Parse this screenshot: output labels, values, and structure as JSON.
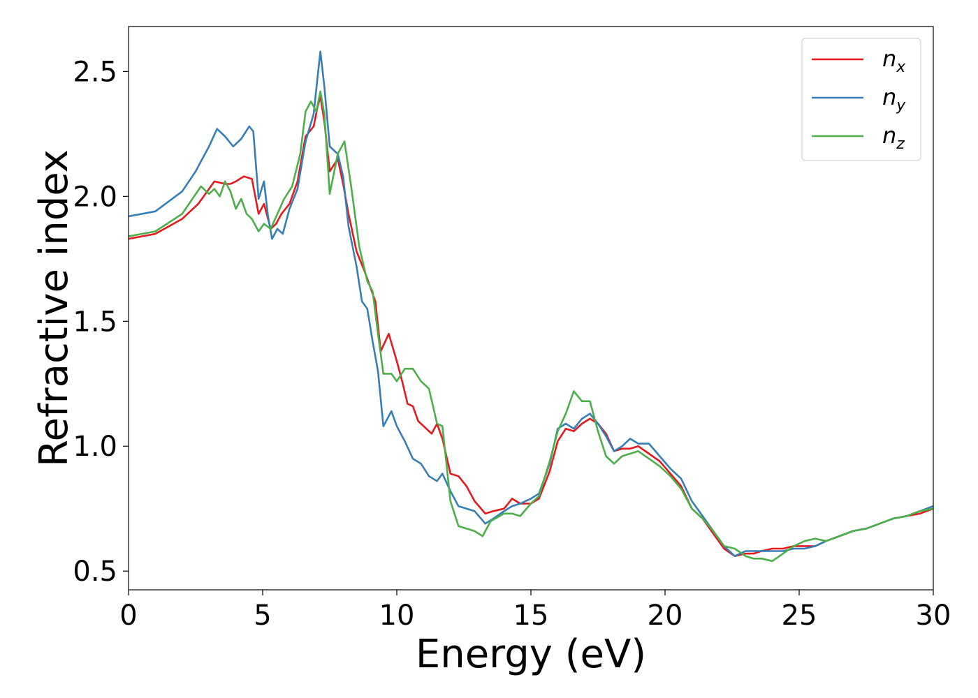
{
  "chart_data": {
    "type": "line",
    "xlabel": "Energy (eV)",
    "ylabel": "Refractive index",
    "xlim": [
      0,
      30
    ],
    "ylim": [
      0.425,
      2.68
    ],
    "xticks": [
      0,
      5,
      10,
      15,
      20,
      25,
      30
    ],
    "yticks": [
      0.5,
      1.0,
      1.5,
      2.0,
      2.5
    ],
    "xtick_labels": [
      "0",
      "5",
      "10",
      "15",
      "20",
      "25",
      "30"
    ],
    "ytick_labels": [
      "0.5",
      "1.0",
      "1.5",
      "2.0",
      "2.5"
    ],
    "grid": false,
    "legend_position": "top-right",
    "series": [
      {
        "name": "n",
        "subscript": "x",
        "color": "#e41a1c",
        "points": [
          [
            0,
            1.83
          ],
          [
            1,
            1.85
          ],
          [
            2,
            1.91
          ],
          [
            2.6,
            1.97
          ],
          [
            3.2,
            2.06
          ],
          [
            3.6,
            2.05
          ],
          [
            3.8,
            2.05
          ],
          [
            4,
            2.06
          ],
          [
            4.3,
            2.08
          ],
          [
            4.6,
            2.07
          ],
          [
            4.85,
            1.93
          ],
          [
            5.05,
            1.97
          ],
          [
            5.3,
            1.87
          ],
          [
            5.5,
            1.89
          ],
          [
            5.7,
            1.93
          ],
          [
            6,
            1.97
          ],
          [
            6.3,
            2.06
          ],
          [
            6.6,
            2.24
          ],
          [
            6.9,
            2.28
          ],
          [
            7.05,
            2.36
          ],
          [
            7.15,
            2.4
          ],
          [
            7.3,
            2.3
          ],
          [
            7.5,
            2.1
          ],
          [
            7.8,
            2.15
          ],
          [
            8,
            2.05
          ],
          [
            8.2,
            1.93
          ],
          [
            8.5,
            1.78
          ],
          [
            8.8,
            1.7
          ],
          [
            9,
            1.64
          ],
          [
            9.2,
            1.58
          ],
          [
            9.4,
            1.38
          ],
          [
            9.7,
            1.45
          ],
          [
            10,
            1.34
          ],
          [
            10.2,
            1.26
          ],
          [
            10.4,
            1.17
          ],
          [
            10.6,
            1.16
          ],
          [
            10.8,
            1.1
          ],
          [
            11,
            1.08
          ],
          [
            11.3,
            1.05
          ],
          [
            11.5,
            1.09
          ],
          [
            11.7,
            1.03
          ],
          [
            12,
            0.89
          ],
          [
            12.3,
            0.88
          ],
          [
            12.6,
            0.84
          ],
          [
            12.9,
            0.78
          ],
          [
            13.3,
            0.73
          ],
          [
            13.6,
            0.74
          ],
          [
            14,
            0.75
          ],
          [
            14.3,
            0.79
          ],
          [
            14.6,
            0.77
          ],
          [
            15,
            0.77
          ],
          [
            15.3,
            0.79
          ],
          [
            15.7,
            0.9
          ],
          [
            16,
            1.02
          ],
          [
            16.3,
            1.07
          ],
          [
            16.6,
            1.06
          ],
          [
            16.9,
            1.09
          ],
          [
            17.2,
            1.11
          ],
          [
            17.5,
            1.09
          ],
          [
            17.8,
            1.05
          ],
          [
            18.1,
            0.98
          ],
          [
            18.4,
            0.99
          ],
          [
            18.7,
            0.99
          ],
          [
            19,
            1.0
          ],
          [
            19.4,
            0.97
          ],
          [
            19.8,
            0.94
          ],
          [
            20.2,
            0.89
          ],
          [
            20.6,
            0.84
          ],
          [
            21,
            0.75
          ],
          [
            21.4,
            0.71
          ],
          [
            21.8,
            0.65
          ],
          [
            22.2,
            0.59
          ],
          [
            22.6,
            0.56
          ],
          [
            23,
            0.57
          ],
          [
            23.3,
            0.57
          ],
          [
            23.6,
            0.58
          ],
          [
            24,
            0.59
          ],
          [
            24.4,
            0.59
          ],
          [
            24.8,
            0.6
          ],
          [
            25.2,
            0.6
          ],
          [
            25.6,
            0.6
          ],
          [
            26,
            0.62
          ],
          [
            26.5,
            0.64
          ],
          [
            27,
            0.66
          ],
          [
            27.5,
            0.67
          ],
          [
            28,
            0.69
          ],
          [
            28.5,
            0.71
          ],
          [
            29,
            0.72
          ],
          [
            29.5,
            0.73
          ],
          [
            30,
            0.75
          ]
        ]
      },
      {
        "name": "n",
        "subscript": "y",
        "color": "#377eb8",
        "points": [
          [
            0,
            1.92
          ],
          [
            1,
            1.94
          ],
          [
            2,
            2.02
          ],
          [
            2.5,
            2.1
          ],
          [
            3,
            2.2
          ],
          [
            3.3,
            2.27
          ],
          [
            3.6,
            2.24
          ],
          [
            3.9,
            2.2
          ],
          [
            4.2,
            2.23
          ],
          [
            4.5,
            2.28
          ],
          [
            4.65,
            2.26
          ],
          [
            4.85,
            1.99
          ],
          [
            5.05,
            2.06
          ],
          [
            5.2,
            1.92
          ],
          [
            5.35,
            1.83
          ],
          [
            5.55,
            1.87
          ],
          [
            5.75,
            1.85
          ],
          [
            6,
            1.95
          ],
          [
            6.3,
            2.03
          ],
          [
            6.6,
            2.22
          ],
          [
            6.9,
            2.33
          ],
          [
            7.05,
            2.48
          ],
          [
            7.15,
            2.58
          ],
          [
            7.3,
            2.44
          ],
          [
            7.5,
            2.2
          ],
          [
            7.8,
            2.17
          ],
          [
            8,
            2.08
          ],
          [
            8.2,
            1.88
          ],
          [
            8.5,
            1.72
          ],
          [
            8.7,
            1.58
          ],
          [
            8.9,
            1.55
          ],
          [
            9.1,
            1.42
          ],
          [
            9.3,
            1.3
          ],
          [
            9.5,
            1.08
          ],
          [
            9.8,
            1.14
          ],
          [
            10,
            1.08
          ],
          [
            10.3,
            1.02
          ],
          [
            10.6,
            0.95
          ],
          [
            10.9,
            0.93
          ],
          [
            11.2,
            0.88
          ],
          [
            11.5,
            0.86
          ],
          [
            11.7,
            0.89
          ],
          [
            12,
            0.82
          ],
          [
            12.3,
            0.76
          ],
          [
            12.6,
            0.75
          ],
          [
            12.9,
            0.74
          ],
          [
            13.3,
            0.69
          ],
          [
            13.6,
            0.71
          ],
          [
            14,
            0.74
          ],
          [
            14.3,
            0.76
          ],
          [
            14.6,
            0.77
          ],
          [
            15,
            0.79
          ],
          [
            15.3,
            0.81
          ],
          [
            15.7,
            0.93
          ],
          [
            16,
            1.07
          ],
          [
            16.3,
            1.09
          ],
          [
            16.6,
            1.07
          ],
          [
            16.9,
            1.11
          ],
          [
            17.2,
            1.13
          ],
          [
            17.5,
            1.09
          ],
          [
            17.8,
            1.04
          ],
          [
            18.1,
            0.98
          ],
          [
            18.4,
            1.0
          ],
          [
            18.7,
            1.03
          ],
          [
            19,
            1.01
          ],
          [
            19.4,
            1.01
          ],
          [
            19.8,
            0.96
          ],
          [
            20.2,
            0.91
          ],
          [
            20.6,
            0.87
          ],
          [
            21,
            0.78
          ],
          [
            21.4,
            0.72
          ],
          [
            21.8,
            0.66
          ],
          [
            22.2,
            0.6
          ],
          [
            22.6,
            0.56
          ],
          [
            23,
            0.58
          ],
          [
            23.3,
            0.58
          ],
          [
            23.6,
            0.58
          ],
          [
            24,
            0.58
          ],
          [
            24.4,
            0.58
          ],
          [
            24.8,
            0.59
          ],
          [
            25.2,
            0.59
          ],
          [
            25.6,
            0.6
          ],
          [
            26,
            0.62
          ],
          [
            26.5,
            0.64
          ],
          [
            27,
            0.66
          ],
          [
            27.5,
            0.67
          ],
          [
            28,
            0.69
          ],
          [
            28.5,
            0.71
          ],
          [
            29,
            0.72
          ],
          [
            29.5,
            0.74
          ],
          [
            30,
            0.76
          ]
        ]
      },
      {
        "name": "n",
        "subscript": "z",
        "color": "#4daf4a",
        "points": [
          [
            0,
            1.84
          ],
          [
            1,
            1.86
          ],
          [
            2,
            1.93
          ],
          [
            2.7,
            2.04
          ],
          [
            3,
            2.01
          ],
          [
            3.2,
            2.03
          ],
          [
            3.4,
            2.0
          ],
          [
            3.6,
            2.06
          ],
          [
            3.8,
            2.02
          ],
          [
            4,
            1.95
          ],
          [
            4.2,
            1.99
          ],
          [
            4.4,
            1.93
          ],
          [
            4.6,
            1.91
          ],
          [
            4.85,
            1.86
          ],
          [
            5.05,
            1.89
          ],
          [
            5.3,
            1.87
          ],
          [
            5.55,
            1.93
          ],
          [
            5.8,
            1.99
          ],
          [
            6.1,
            2.04
          ],
          [
            6.4,
            2.17
          ],
          [
            6.6,
            2.34
          ],
          [
            6.8,
            2.38
          ],
          [
            7,
            2.34
          ],
          [
            7.15,
            2.42
          ],
          [
            7.3,
            2.33
          ],
          [
            7.5,
            2.01
          ],
          [
            7.8,
            2.17
          ],
          [
            8.05,
            2.22
          ],
          [
            8.3,
            2.04
          ],
          [
            8.6,
            1.8
          ],
          [
            8.9,
            1.66
          ],
          [
            9.1,
            1.62
          ],
          [
            9.3,
            1.45
          ],
          [
            9.5,
            1.29
          ],
          [
            9.8,
            1.29
          ],
          [
            10,
            1.26
          ],
          [
            10.3,
            1.31
          ],
          [
            10.6,
            1.31
          ],
          [
            10.9,
            1.26
          ],
          [
            11.2,
            1.23
          ],
          [
            11.5,
            1.09
          ],
          [
            11.7,
            1.08
          ],
          [
            12,
            0.78
          ],
          [
            12.3,
            0.68
          ],
          [
            12.6,
            0.67
          ],
          [
            12.9,
            0.66
          ],
          [
            13.2,
            0.64
          ],
          [
            13.5,
            0.7
          ],
          [
            14,
            0.73
          ],
          [
            14.3,
            0.73
          ],
          [
            14.6,
            0.72
          ],
          [
            15,
            0.77
          ],
          [
            15.3,
            0.8
          ],
          [
            15.7,
            0.94
          ],
          [
            16,
            1.06
          ],
          [
            16.3,
            1.13
          ],
          [
            16.6,
            1.22
          ],
          [
            16.9,
            1.18
          ],
          [
            17.2,
            1.18
          ],
          [
            17.5,
            1.06
          ],
          [
            17.8,
            0.96
          ],
          [
            18.1,
            0.93
          ],
          [
            18.4,
            0.96
          ],
          [
            18.7,
            0.97
          ],
          [
            19,
            0.98
          ],
          [
            19.4,
            0.95
          ],
          [
            19.8,
            0.92
          ],
          [
            20.2,
            0.88
          ],
          [
            20.6,
            0.83
          ],
          [
            21,
            0.75
          ],
          [
            21.4,
            0.71
          ],
          [
            21.8,
            0.66
          ],
          [
            22.2,
            0.6
          ],
          [
            22.6,
            0.59
          ],
          [
            23,
            0.56
          ],
          [
            23.3,
            0.55
          ],
          [
            23.6,
            0.55
          ],
          [
            24,
            0.54
          ],
          [
            24.4,
            0.57
          ],
          [
            24.8,
            0.6
          ],
          [
            25.2,
            0.62
          ],
          [
            25.6,
            0.63
          ],
          [
            26,
            0.62
          ],
          [
            26.5,
            0.64
          ],
          [
            27,
            0.66
          ],
          [
            27.5,
            0.67
          ],
          [
            28,
            0.69
          ],
          [
            28.5,
            0.71
          ],
          [
            29,
            0.72
          ],
          [
            29.5,
            0.74
          ],
          [
            30,
            0.75
          ]
        ]
      }
    ]
  }
}
